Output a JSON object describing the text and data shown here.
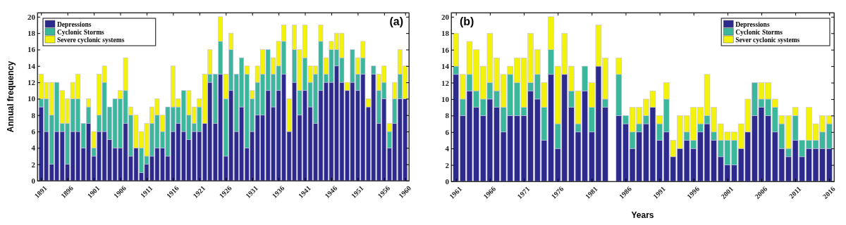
{
  "chart_data": [
    {
      "type": "bar",
      "stacked": true,
      "ylabel": "Annual frequency",
      "annotations": [
        "(a)"
      ],
      "legend": "top left",
      "x": [
        1891,
        1892,
        1893,
        1894,
        1895,
        1896,
        1897,
        1898,
        1899,
        1900,
        1901,
        1902,
        1903,
        1904,
        1905,
        1906,
        1907,
        1908,
        1909,
        1910,
        1911,
        1912,
        1913,
        1914,
        1915,
        1916,
        1917,
        1918,
        1919,
        1920,
        1921,
        1922,
        1923,
        1924,
        1925,
        1926,
        1927,
        1928,
        1929,
        1930,
        1931,
        1932,
        1933,
        1934,
        1935,
        1936,
        1937,
        1938,
        1939,
        1940,
        1941,
        1942,
        1943,
        1944,
        1945,
        1946,
        1947,
        1948,
        1949,
        1950,
        1951,
        1952,
        1953,
        1954,
        1955,
        1956,
        1957,
        1958,
        1959,
        1960
      ],
      "xlim": [
        1890.3,
        1960.7
      ],
      "xticks": [
        1891,
        1896,
        1901,
        1906,
        1911,
        1916,
        1921,
        1926,
        1931,
        1936,
        1941,
        1946,
        1951,
        1956,
        1960
      ],
      "ylim": [
        0,
        20.5
      ],
      "yticks": [
        0,
        2,
        4,
        6,
        8,
        10,
        12,
        14,
        16,
        18,
        20
      ],
      "series": [
        {
          "name": "Depressions",
          "color": "#2d2a8e",
          "values": [
            9,
            6,
            2,
            6,
            6,
            2,
            6,
            6,
            4,
            7,
            3,
            6,
            6,
            5,
            4,
            4,
            7,
            3,
            4,
            1,
            2,
            3,
            4,
            4,
            3,
            6,
            7,
            6,
            5,
            6,
            6,
            7,
            12,
            7,
            13,
            3,
            11,
            6,
            9,
            4,
            6,
            8,
            8,
            11,
            9,
            11,
            13,
            6,
            12,
            8,
            11,
            9,
            7,
            11,
            12,
            12,
            14,
            12,
            11,
            12,
            11,
            13,
            9,
            13,
            7,
            10,
            4,
            7,
            10,
            10
          ]
        },
        {
          "name": "Cyclonic Storms",
          "color": "#3bb89b",
          "values": [
            1,
            4,
            6,
            6,
            1,
            5,
            4,
            4,
            3,
            2,
            1,
            2,
            6,
            4,
            6,
            6,
            4,
            5,
            0,
            3,
            1,
            4,
            4,
            2,
            6,
            3,
            2,
            5,
            3,
            1,
            3,
            0,
            1,
            6,
            4,
            7,
            5,
            7,
            6,
            9,
            4,
            4,
            5,
            5,
            4,
            3,
            4,
            0,
            4,
            3,
            4,
            3,
            6,
            6,
            1,
            4,
            2,
            3,
            0,
            4,
            2,
            2,
            0,
            1,
            4,
            2,
            2,
            3,
            3,
            0
          ]
        },
        {
          "name": "Severe cyclonic systems",
          "color": "#f2f20a",
          "values": [
            3,
            2,
            4,
            0,
            4,
            3,
            2,
            3,
            0,
            1,
            2,
            5,
            2,
            0,
            0,
            1,
            4,
            1,
            4,
            2,
            4,
            2,
            2,
            2,
            0,
            5,
            1,
            0,
            3,
            2,
            1,
            6,
            3,
            0,
            3,
            3,
            2,
            0,
            0,
            1,
            1,
            2,
            3,
            0,
            2,
            3,
            2,
            4,
            3,
            5,
            4,
            2,
            1,
            2,
            2,
            1,
            2,
            3,
            1,
            0,
            2,
            2,
            1,
            0,
            2,
            2,
            1,
            2,
            3,
            4
          ]
        }
      ]
    },
    {
      "type": "bar",
      "stacked": true,
      "xlabel": "Years",
      "annotations": [
        "(b)"
      ],
      "legend": "top right",
      "x": [
        1961,
        1962,
        1963,
        1964,
        1965,
        1966,
        1967,
        1968,
        1969,
        1970,
        1971,
        1972,
        1973,
        1974,
        1975,
        1976,
        1977,
        1978,
        1979,
        1980,
        1981,
        1982,
        1983,
        1984,
        1985,
        1986,
        1987,
        1988,
        1989,
        1990,
        1991,
        1992,
        1993,
        1994,
        1995,
        1996,
        1997,
        1998,
        1999,
        2000,
        2001,
        2002,
        2003,
        2004,
        2005,
        2006,
        2007,
        2008,
        2009,
        2010,
        2011,
        2012,
        2013,
        2014,
        2015,
        2016
      ],
      "xlim": [
        1960.3,
        2016.7
      ],
      "xticks": [
        1961,
        1966,
        1971,
        1976,
        1981,
        1986,
        1991,
        1996,
        2001,
        2006,
        2011,
        2016
      ],
      "ylim": [
        0,
        20.5
      ],
      "yticks": [
        0,
        2,
        4,
        6,
        8,
        10,
        12,
        14,
        16,
        18,
        20
      ],
      "series": [
        {
          "name": "Depressions",
          "color": "#2d2a8e",
          "values": [
            13,
            8,
            11,
            9,
            8,
            10,
            9,
            6,
            8,
            8,
            8,
            11,
            10,
            5,
            13,
            4,
            13,
            9,
            6,
            11,
            6,
            14,
            9,
            null,
            8,
            7,
            4,
            6,
            7,
            9,
            5,
            6,
            3,
            4,
            5,
            4,
            6,
            7,
            5,
            3,
            2,
            2,
            4,
            6,
            8,
            9,
            8,
            6,
            4,
            3,
            5,
            3,
            4,
            4,
            4,
            4
          ]
        },
        {
          "name": "Cyclonic Storms",
          "color": "#3bb89b",
          "values": [
            1,
            2,
            2,
            2,
            2,
            2,
            2,
            3,
            5,
            4,
            1,
            1,
            3,
            4,
            3,
            3,
            0,
            2,
            1,
            3,
            3,
            0,
            1,
            null,
            5,
            1,
            2,
            1,
            1,
            0,
            2,
            4,
            0,
            0,
            1,
            1,
            1,
            1,
            1,
            2,
            3,
            3,
            0,
            0,
            4,
            1,
            2,
            3,
            3,
            1,
            3,
            2,
            1,
            1,
            2,
            3
          ]
        },
        {
          "name": "Sever cyclonic systems",
          "color": "#f2f20a",
          "values": [
            4,
            3,
            4,
            5,
            4,
            6,
            4,
            4,
            1,
            3,
            6,
            6,
            3,
            3,
            4,
            7,
            5,
            3,
            4,
            0,
            3,
            5,
            5,
            null,
            2,
            0,
            3,
            2,
            2,
            2,
            1,
            2,
            2,
            4,
            2,
            4,
            2,
            5,
            3,
            2,
            1,
            1,
            3,
            4,
            0,
            2,
            2,
            1,
            1,
            4,
            1,
            0,
            4,
            2,
            2,
            1
          ]
        }
      ]
    }
  ]
}
